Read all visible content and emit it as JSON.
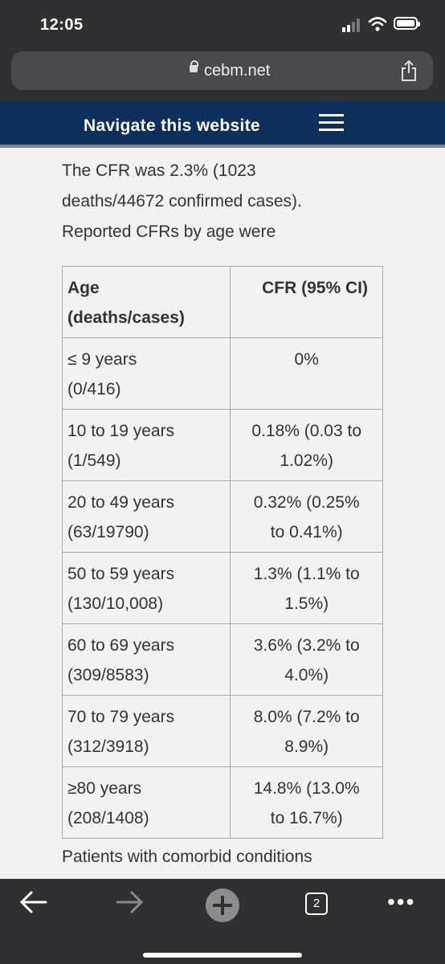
{
  "status": {
    "time": "12:05"
  },
  "browser": {
    "url": "cebm.net",
    "tab_count": "2"
  },
  "nav": {
    "label": "Navigate this website"
  },
  "article": {
    "intro": "The CFR was 2.3% (1023 deaths/44672 confirmed cases). Reported CFRs by age were",
    "table": {
      "header_age_1": "Age",
      "header_age_2": "(deaths/cases)",
      "header_cfr": "CFR (95% CI)",
      "rows": [
        {
          "age": "≤ 9 years",
          "count": " (0/416)",
          "cfr1": "0%",
          "cfr2": ""
        },
        {
          "age": "10 to 19 years",
          "count": "(1/549)",
          "cfr1": "0.18%   (0.03 to",
          "cfr2": "1.02%)"
        },
        {
          "age": "20 to 49  years",
          "count": "(63/19790)",
          "cfr1": "0.32% (0.25%",
          "cfr2": "to 0.41%)"
        },
        {
          "age": "50 to 59 years",
          "count": "(130/10,008)",
          "cfr1": "1.3%  (1.1% to",
          "cfr2": "1.5%)"
        },
        {
          "age": "60 to 69 years",
          "count": "(309/8583)",
          "cfr1": "3.6% (3.2% to",
          "cfr2": "4.0%)"
        },
        {
          "age": "70 to 79 years",
          "count": "(312/3918)",
          "cfr1": "8.0% (7.2% to",
          "cfr2": "8.9%)"
        },
        {
          "age": "≥80 years",
          "count": "(208/1408)",
          "cfr1": "14.8% (13.0%",
          "cfr2": "to 16.7%)"
        }
      ]
    },
    "after_text": "Patients with comorbid conditions"
  }
}
